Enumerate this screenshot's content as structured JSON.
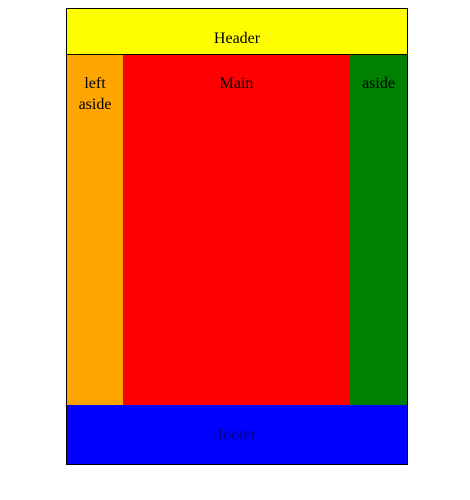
{
  "header": {
    "label": "Header"
  },
  "left_aside": {
    "line1": "left",
    "line2": "aside"
  },
  "main": {
    "label": "Main"
  },
  "right_aside": {
    "label": "aside"
  },
  "footer": {
    "label": "footer"
  },
  "colors": {
    "header": "#ffff00",
    "left_aside": "#ffa500",
    "main": "#ff0000",
    "right_aside": "#008000",
    "footer": "#0000ff"
  }
}
